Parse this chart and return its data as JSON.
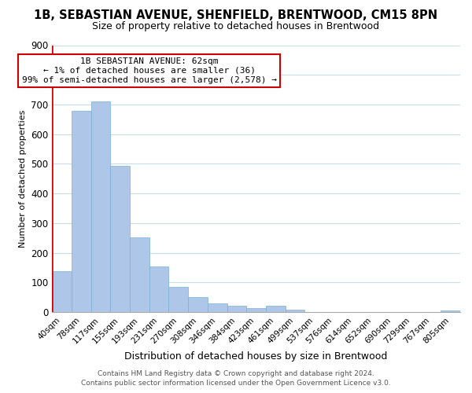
{
  "title": "1B, SEBASTIAN AVENUE, SHENFIELD, BRENTWOOD, CM15 8PN",
  "subtitle": "Size of property relative to detached houses in Brentwood",
  "xlabel": "Distribution of detached houses by size in Brentwood",
  "ylabel": "Number of detached properties",
  "bin_labels": [
    "40sqm",
    "78sqm",
    "117sqm",
    "155sqm",
    "193sqm",
    "231sqm",
    "270sqm",
    "308sqm",
    "346sqm",
    "384sqm",
    "423sqm",
    "461sqm",
    "499sqm",
    "537sqm",
    "576sqm",
    "614sqm",
    "652sqm",
    "690sqm",
    "729sqm",
    "767sqm",
    "805sqm"
  ],
  "bar_heights": [
    137,
    678,
    710,
    493,
    253,
    154,
    86,
    51,
    29,
    20,
    13,
    20,
    8,
    0,
    0,
    0,
    0,
    0,
    0,
    0,
    5
  ],
  "bar_color": "#aec6e8",
  "bar_edge_color": "#7bafd4",
  "highlight_color": "#cc0000",
  "annotation_title": "1B SEBASTIAN AVENUE: 62sqm",
  "annotation_line1": "← 1% of detached houses are smaller (36)",
  "annotation_line2": "99% of semi-detached houses are larger (2,578) →",
  "annotation_box_color": "#cc0000",
  "ylim": [
    0,
    900
  ],
  "yticks": [
    0,
    100,
    200,
    300,
    400,
    500,
    600,
    700,
    800,
    900
  ],
  "footer_line1": "Contains HM Land Registry data © Crown copyright and database right 2024.",
  "footer_line2": "Contains public sector information licensed under the Open Government Licence v3.0.",
  "bg_color": "#ffffff",
  "grid_color": "#c8dcea"
}
